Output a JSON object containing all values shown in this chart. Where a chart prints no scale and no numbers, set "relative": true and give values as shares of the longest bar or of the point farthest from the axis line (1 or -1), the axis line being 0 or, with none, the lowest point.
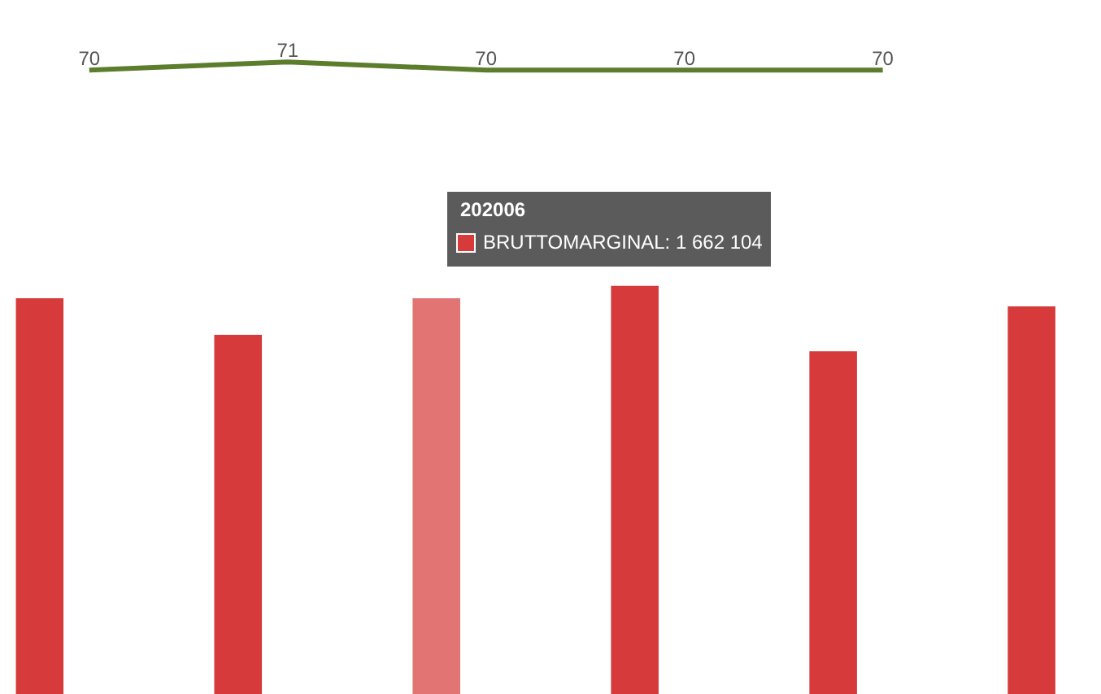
{
  "chart_data": [
    {
      "type": "bar",
      "relative": true,
      "categories": [
        null,
        null,
        null,
        null,
        null,
        null
      ],
      "series": [
        {
          "color": "#d63a3a",
          "colors": [
            "#d63a3a",
            "#d63a3a",
            "#e27474",
            "#d63a3a",
            "#d63a3a",
            "#d63a3a"
          ],
          "values": [
            0.97,
            0.88,
            0.97,
            1,
            0.84,
            0.95
          ]
        }
      ],
      "annotations": [
        "202006",
        "BRUTTOMARGINAL: 1 662 104"
      ]
    },
    {
      "type": "line",
      "categories": [
        null,
        null,
        null,
        null,
        null,
        null
      ],
      "data_labels": true,
      "line_style": "solid",
      "series": [
        {
          "color": "#5b7d2c",
          "values": [
            70,
            71,
            70,
            70,
            70,
            null
          ]
        }
      ]
    }
  ]
}
